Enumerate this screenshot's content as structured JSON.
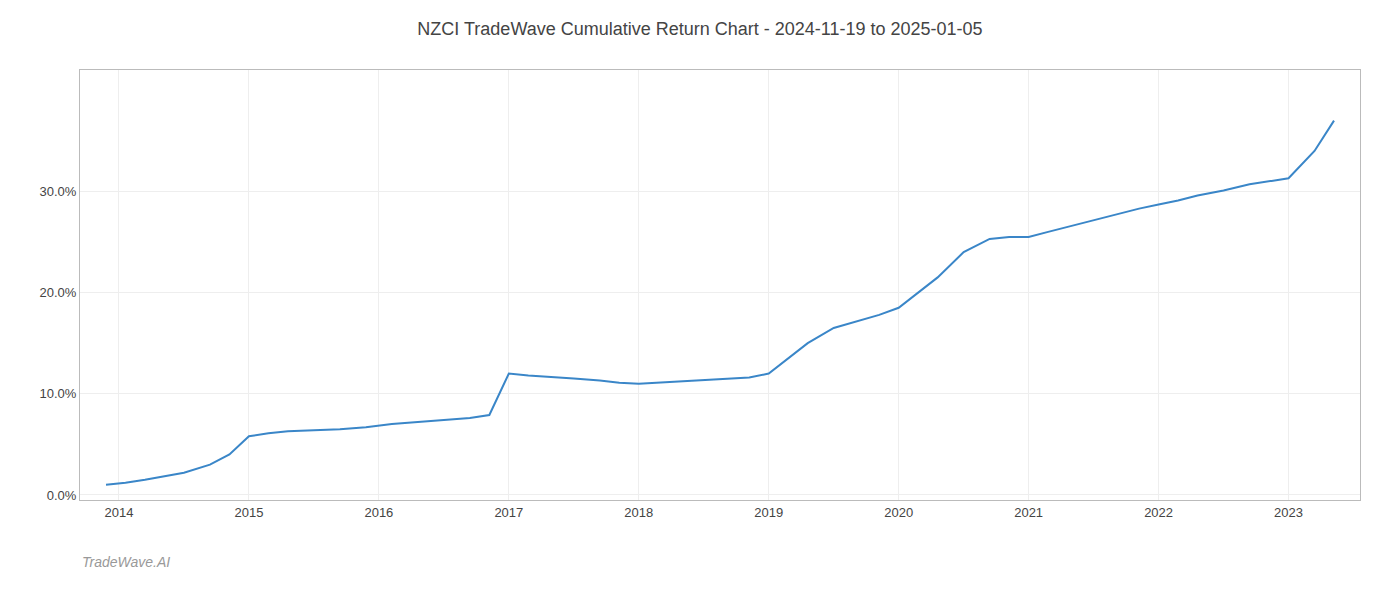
{
  "chart_data": {
    "type": "line",
    "title": "NZCI TradeWave Cumulative Return Chart - 2024-11-19 to 2025-01-05",
    "annotations": [
      "TradeWave.AI"
    ],
    "x": [
      2013.9,
      2014.05,
      2014.2,
      2014.5,
      2014.7,
      2014.85,
      2015.0,
      2015.15,
      2015.3,
      2015.5,
      2015.7,
      2015.9,
      2016.1,
      2016.3,
      2016.5,
      2016.7,
      2016.85,
      2017.0,
      2017.15,
      2017.3,
      2017.5,
      2017.7,
      2017.85,
      2018.0,
      2018.15,
      2018.3,
      2018.5,
      2018.7,
      2018.85,
      2019.0,
      2019.15,
      2019.3,
      2019.5,
      2019.7,
      2019.85,
      2020.0,
      2020.15,
      2020.3,
      2020.5,
      2020.7,
      2020.85,
      2021.0,
      2021.15,
      2021.3,
      2021.5,
      2021.7,
      2021.85,
      2022.0,
      2022.15,
      2022.3,
      2022.5,
      2022.7,
      2022.85,
      2023.0,
      2023.2,
      2023.35
    ],
    "values": [
      0.01,
      0.012,
      0.015,
      0.022,
      0.03,
      0.04,
      0.058,
      0.061,
      0.063,
      0.064,
      0.065,
      0.067,
      0.07,
      0.072,
      0.074,
      0.076,
      0.079,
      0.12,
      0.118,
      0.117,
      0.115,
      0.113,
      0.111,
      0.11,
      0.111,
      0.112,
      0.114,
      0.115,
      0.116,
      0.12,
      0.135,
      0.15,
      0.165,
      0.172,
      0.178,
      0.185,
      0.2,
      0.215,
      0.24,
      0.253,
      0.255,
      0.255,
      0.26,
      0.265,
      0.272,
      0.278,
      0.283,
      0.287,
      0.291,
      0.296,
      0.301,
      0.307,
      0.31,
      0.313,
      0.34,
      0.37
    ],
    "color": "#3a86c8",
    "xlim": [
      2013.7,
      2023.55
    ],
    "ylim": [
      -0.005,
      0.42
    ],
    "xticks": [
      2014,
      2015,
      2016,
      2017,
      2018,
      2019,
      2020,
      2021,
      2022,
      2023
    ],
    "yticks": [
      {
        "value": 0.0,
        "label": "0.0%"
      },
      {
        "value": 0.1,
        "label": "10.0%"
      },
      {
        "value": 0.2,
        "label": "20.0%"
      },
      {
        "value": 0.3,
        "label": "30.0%"
      }
    ],
    "grid": true
  }
}
